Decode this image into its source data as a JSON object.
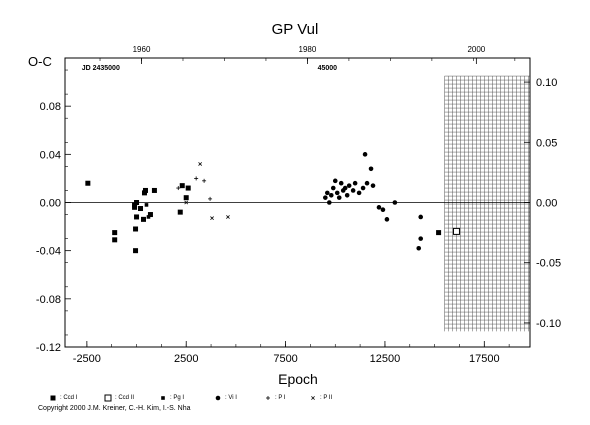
{
  "chart_data": {
    "type": "scatter",
    "title": "GP Vul",
    "xlabel": "Epoch",
    "ylabel": "O-C",
    "xlim": [
      -3600,
      19800
    ],
    "ylim": [
      -0.12,
      0.12
    ],
    "x_ticks": [
      -2500,
      2500,
      7500,
      12500,
      17500
    ],
    "x_tick_labels": [
      "-2500",
      "2500",
      "7500",
      "12500",
      "17500"
    ],
    "y_ticks": [
      -0.12,
      -0.08,
      -0.04,
      0.0,
      0.04,
      0.08
    ],
    "y_tick_labels": [
      "-0.12",
      "-0.08",
      "-0.04",
      "0.00",
      "0.04",
      "0.08"
    ],
    "right_y_ticks": [
      -0.1,
      -0.05,
      0.0,
      0.05,
      0.1
    ],
    "right_y_tick_labels": [
      "-0.10",
      "-0.05",
      "0.00",
      "0.05",
      "0.10"
    ],
    "top_axis": {
      "years": [
        "1960",
        "1980",
        "2000"
      ],
      "year_epochs": [
        250,
        13250,
        26250
      ],
      "year_pos_epochs": [
        250,
        8600,
        17100
      ]
    },
    "annotations": [
      {
        "text": "JD 2435000",
        "epoch": -1800,
        "y": 0.11
      },
      {
        "text": "45000",
        "epoch": 9600,
        "y": 0.11
      }
    ],
    "future_region": {
      "from_epoch": 15500
    },
    "series": [
      {
        "name": "Ccd I",
        "marker": "filled-square",
        "points": [
          [
            -2450,
            0.016
          ],
          [
            -1100,
            -0.025
          ],
          [
            -1100,
            -0.031
          ],
          [
            -100,
            -0.002
          ],
          [
            -100,
            -0.004
          ],
          [
            0,
            0.0
          ],
          [
            0,
            -0.012
          ],
          [
            -50,
            -0.022
          ],
          [
            -50,
            -0.04
          ],
          [
            200,
            -0.005
          ],
          [
            400,
            0.008
          ],
          [
            450,
            0.01
          ],
          [
            350,
            -0.014
          ],
          [
            700,
            -0.01
          ],
          [
            900,
            0.01
          ],
          [
            2300,
            0.014
          ],
          [
            2600,
            0.012
          ],
          [
            2500,
            0.004
          ],
          [
            2200,
            -0.008
          ],
          [
            15200,
            -0.025
          ]
        ]
      },
      {
        "name": "Ccd II",
        "marker": "open-square",
        "points": [
          [
            16100,
            -0.024
          ]
        ]
      },
      {
        "name": "Pg I",
        "marker": "small-filled-square",
        "points": [
          [
            500,
            -0.002
          ],
          [
            600,
            -0.012
          ]
        ]
      },
      {
        "name": "Vi I",
        "marker": "filled-circle",
        "points": [
          [
            9500,
            0.004
          ],
          [
            9600,
            0.008
          ],
          [
            9700,
            0.0
          ],
          [
            9800,
            0.006
          ],
          [
            9900,
            0.012
          ],
          [
            10000,
            0.018
          ],
          [
            10100,
            0.008
          ],
          [
            10200,
            0.004
          ],
          [
            10300,
            0.016
          ],
          [
            10400,
            0.01
          ],
          [
            10500,
            0.012
          ],
          [
            10600,
            0.006
          ],
          [
            10700,
            0.014
          ],
          [
            10900,
            0.01
          ],
          [
            11000,
            0.016
          ],
          [
            11200,
            0.008
          ],
          [
            11400,
            0.012
          ],
          [
            11500,
            0.04
          ],
          [
            11600,
            0.016
          ],
          [
            11800,
            0.028
          ],
          [
            11900,
            0.014
          ],
          [
            12200,
            -0.004
          ],
          [
            12400,
            -0.006
          ],
          [
            12600,
            -0.014
          ],
          [
            13000,
            0.0
          ],
          [
            14300,
            -0.012
          ],
          [
            14300,
            -0.03
          ],
          [
            14200,
            -0.038
          ]
        ]
      },
      {
        "name": "P I",
        "marker": "plus",
        "points": [
          [
            2100,
            0.012
          ],
          [
            3000,
            0.02
          ],
          [
            3400,
            0.018
          ],
          [
            3700,
            0.003
          ]
        ]
      },
      {
        "name": "P II",
        "marker": "cross",
        "points": [
          [
            3200,
            0.032
          ],
          [
            3800,
            -0.013
          ],
          [
            4600,
            -0.012
          ],
          [
            2500,
            0.0
          ]
        ]
      }
    ],
    "grid": false,
    "legend_placement": "bottom"
  },
  "legend": {
    "items": [
      {
        "label": ": Ccd I",
        "marker": "filled-square"
      },
      {
        "label": ": Ccd II",
        "marker": "open-square"
      },
      {
        "label": ": Pg I",
        "marker": "small-filled-square"
      },
      {
        "label": ": Vi I",
        "marker": "filled-circle"
      },
      {
        "label": ": P I",
        "marker": "plus"
      },
      {
        "label": ": P II",
        "marker": "cross"
      }
    ]
  },
  "copyright": "Copyright 2000 J.M. Kreiner, C.-H. Kim, I.-S. Nha"
}
